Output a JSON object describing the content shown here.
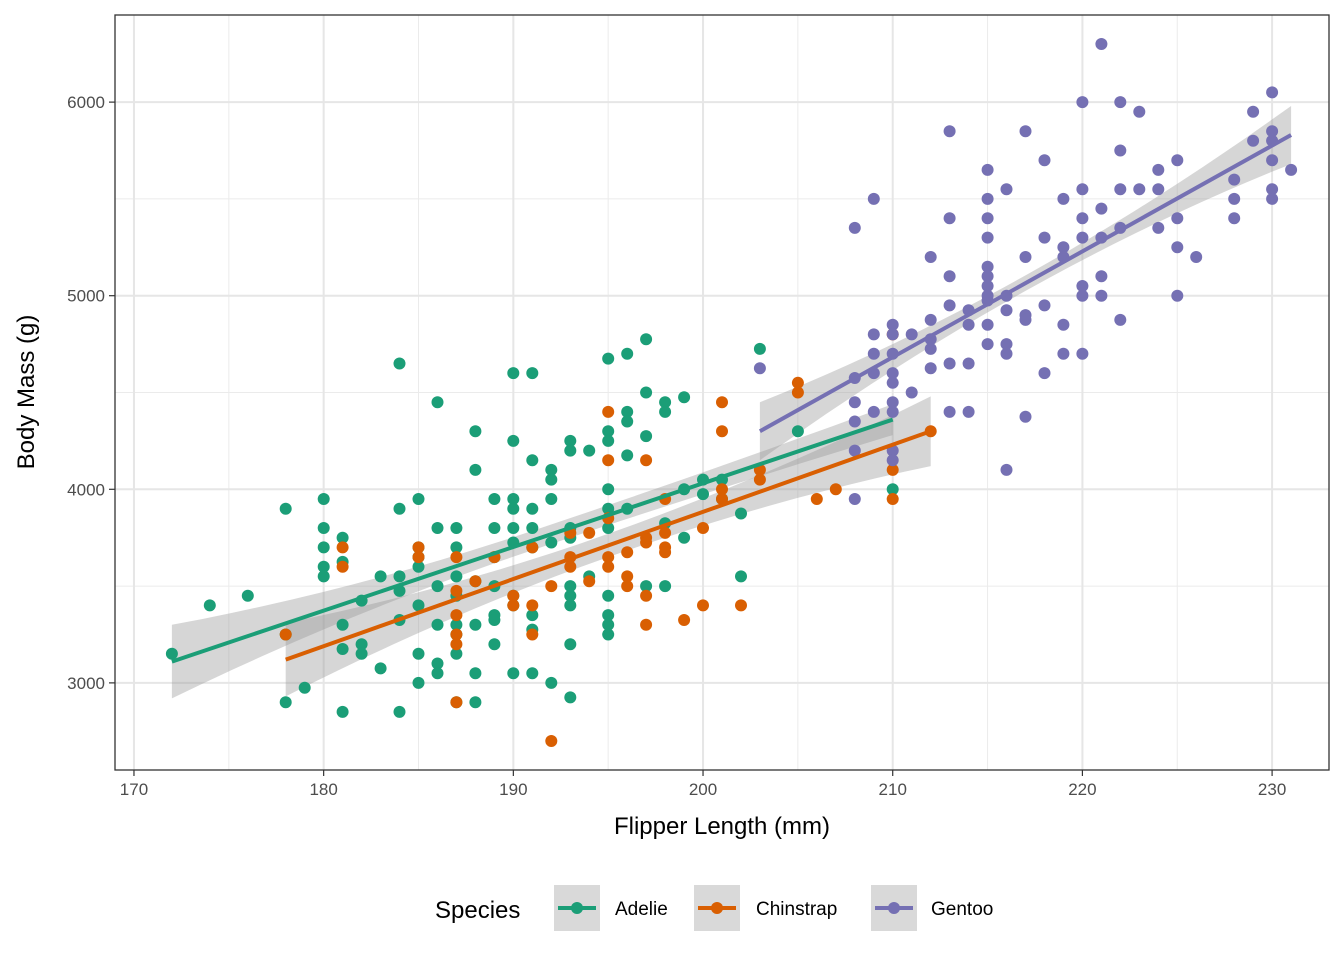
{
  "chart_data": {
    "type": "scatter",
    "xlabel": "Flipper Length (mm)",
    "ylabel": "Body Mass (g)",
    "xlim": [
      169,
      233
    ],
    "ylim": [
      2550,
      6450
    ],
    "x_ticks": [
      170,
      180,
      190,
      200,
      210,
      220,
      230
    ],
    "y_ticks": [
      3000,
      4000,
      5000,
      6000
    ],
    "grid": true,
    "legend": {
      "title": "Species",
      "position": "bottom"
    },
    "series": [
      {
        "name": "Adelie",
        "color": "#1b9e77",
        "fit": {
          "x0": 172,
          "y0": 3110,
          "x1": 210,
          "y1": 4360,
          "band_start": 190,
          "band_mid": 50,
          "band_end": 80
        },
        "points": [
          [
            172,
            3150
          ],
          [
            174,
            3400
          ],
          [
            176,
            3450
          ],
          [
            178,
            3900
          ],
          [
            178,
            2900
          ],
          [
            178,
            3250
          ],
          [
            179,
            2975
          ],
          [
            180,
            3950
          ],
          [
            180,
            3800
          ],
          [
            180,
            3700
          ],
          [
            180,
            3600
          ],
          [
            180,
            3550
          ],
          [
            181,
            3750
          ],
          [
            181,
            3625
          ],
          [
            181,
            3300
          ],
          [
            181,
            3175
          ],
          [
            181,
            2850
          ],
          [
            182,
            3425
          ],
          [
            182,
            3200
          ],
          [
            182,
            3150
          ],
          [
            183,
            3550
          ],
          [
            183,
            3075
          ],
          [
            184,
            4650
          ],
          [
            184,
            3900
          ],
          [
            184,
            3550
          ],
          [
            184,
            3475
          ],
          [
            184,
            3325
          ],
          [
            184,
            2850
          ],
          [
            185,
            3950
          ],
          [
            185,
            3700
          ],
          [
            185,
            3650
          ],
          [
            185,
            3600
          ],
          [
            185,
            3400
          ],
          [
            185,
            3150
          ],
          [
            185,
            3000
          ],
          [
            186,
            4450
          ],
          [
            186,
            3800
          ],
          [
            186,
            3500
          ],
          [
            186,
            3300
          ],
          [
            186,
            3100
          ],
          [
            186,
            3050
          ],
          [
            187,
            3800
          ],
          [
            187,
            3700
          ],
          [
            187,
            3550
          ],
          [
            187,
            3450
          ],
          [
            187,
            3300
          ],
          [
            187,
            3250
          ],
          [
            187,
            3150
          ],
          [
            187,
            2900
          ],
          [
            188,
            4300
          ],
          [
            188,
            4100
          ],
          [
            188,
            3525
          ],
          [
            188,
            3300
          ],
          [
            188,
            3050
          ],
          [
            188,
            2900
          ],
          [
            189,
            3950
          ],
          [
            189,
            3800
          ],
          [
            189,
            3650
          ],
          [
            189,
            3500
          ],
          [
            189,
            3350
          ],
          [
            189,
            3325
          ],
          [
            189,
            3200
          ],
          [
            190,
            4600
          ],
          [
            190,
            4250
          ],
          [
            190,
            3950
          ],
          [
            190,
            3900
          ],
          [
            190,
            3800
          ],
          [
            190,
            3725
          ],
          [
            190,
            3450
          ],
          [
            190,
            3400
          ],
          [
            190,
            3050
          ],
          [
            191,
            4600
          ],
          [
            191,
            4150
          ],
          [
            191,
            3900
          ],
          [
            191,
            3800
          ],
          [
            191,
            3700
          ],
          [
            191,
            3350
          ],
          [
            191,
            3275
          ],
          [
            191,
            3050
          ],
          [
            192,
            4100
          ],
          [
            192,
            4050
          ],
          [
            192,
            3950
          ],
          [
            192,
            3725
          ],
          [
            192,
            3000
          ],
          [
            193,
            4250
          ],
          [
            193,
            4200
          ],
          [
            193,
            3800
          ],
          [
            193,
            3750
          ],
          [
            193,
            3500
          ],
          [
            193,
            3450
          ],
          [
            193,
            3400
          ],
          [
            193,
            3200
          ],
          [
            193,
            2925
          ],
          [
            194,
            4200
          ],
          [
            194,
            3550
          ],
          [
            195,
            4675
          ],
          [
            195,
            4300
          ],
          [
            195,
            4250
          ],
          [
            195,
            4000
          ],
          [
            195,
            3900
          ],
          [
            195,
            3800
          ],
          [
            195,
            3450
          ],
          [
            195,
            3350
          ],
          [
            195,
            3300
          ],
          [
            195,
            3250
          ],
          [
            196,
            4700
          ],
          [
            196,
            4400
          ],
          [
            196,
            4350
          ],
          [
            196,
            4175
          ],
          [
            196,
            3900
          ],
          [
            197,
            4775
          ],
          [
            197,
            4500
          ],
          [
            197,
            4275
          ],
          [
            197,
            3500
          ],
          [
            198,
            4450
          ],
          [
            198,
            4400
          ],
          [
            198,
            3825
          ],
          [
            198,
            3500
          ],
          [
            199,
            4475
          ],
          [
            199,
            4000
          ],
          [
            199,
            3750
          ],
          [
            200,
            4050
          ],
          [
            200,
            3975
          ],
          [
            201,
            4050
          ],
          [
            201,
            3950
          ],
          [
            202,
            3875
          ],
          [
            202,
            3550
          ],
          [
            203,
            4725
          ],
          [
            205,
            4300
          ],
          [
            210,
            4000
          ]
        ]
      },
      {
        "name": "Chinstrap",
        "color": "#d95f02",
        "fit": {
          "x0": 178,
          "y0": 3120,
          "x1": 212,
          "y1": 4300,
          "band_start": 190,
          "band_mid": 60,
          "band_end": 180
        },
        "points": [
          [
            178,
            3250
          ],
          [
            181,
            3700
          ],
          [
            181,
            3600
          ],
          [
            185,
            3700
          ],
          [
            185,
            3650
          ],
          [
            187,
            3650
          ],
          [
            187,
            3475
          ],
          [
            187,
            3350
          ],
          [
            187,
            3250
          ],
          [
            187,
            3200
          ],
          [
            187,
            2900
          ],
          [
            188,
            3525
          ],
          [
            189,
            3650
          ],
          [
            190,
            3450
          ],
          [
            190,
            3400
          ],
          [
            191,
            3700
          ],
          [
            191,
            3400
          ],
          [
            191,
            3250
          ],
          [
            192,
            3500
          ],
          [
            192,
            2700
          ],
          [
            193,
            3775
          ],
          [
            193,
            3650
          ],
          [
            193,
            3600
          ],
          [
            194,
            3775
          ],
          [
            194,
            3525
          ],
          [
            195,
            4400
          ],
          [
            195,
            4150
          ],
          [
            195,
            3850
          ],
          [
            195,
            3650
          ],
          [
            195,
            3600
          ],
          [
            196,
            3675
          ],
          [
            196,
            3550
          ],
          [
            196,
            3500
          ],
          [
            197,
            4150
          ],
          [
            197,
            3750
          ],
          [
            197,
            3725
          ],
          [
            197,
            3450
          ],
          [
            197,
            3300
          ],
          [
            198,
            3950
          ],
          [
            198,
            3775
          ],
          [
            198,
            3700
          ],
          [
            198,
            3675
          ],
          [
            199,
            3325
          ],
          [
            200,
            3800
          ],
          [
            200,
            3400
          ],
          [
            201,
            4450
          ],
          [
            201,
            4300
          ],
          [
            201,
            4000
          ],
          [
            201,
            3950
          ],
          [
            202,
            3400
          ],
          [
            203,
            4100
          ],
          [
            203,
            4050
          ],
          [
            205,
            4550
          ],
          [
            205,
            4500
          ],
          [
            206,
            3950
          ],
          [
            207,
            4000
          ],
          [
            210,
            4800
          ],
          [
            210,
            4100
          ],
          [
            210,
            3950
          ],
          [
            212,
            4300
          ]
        ]
      },
      {
        "name": "Gentoo",
        "color": "#7570b3",
        "fit": {
          "x0": 203,
          "y0": 4300,
          "x1": 231,
          "y1": 5830,
          "band_start": 150,
          "band_mid": 40,
          "band_end": 150
        },
        "points": [
          [
            203,
            4625
          ],
          [
            208,
            5350
          ],
          [
            208,
            4575
          ],
          [
            208,
            4450
          ],
          [
            208,
            4350
          ],
          [
            208,
            4200
          ],
          [
            208,
            3950
          ],
          [
            209,
            5500
          ],
          [
            209,
            4800
          ],
          [
            209,
            4700
          ],
          [
            209,
            4600
          ],
          [
            209,
            4400
          ],
          [
            210,
            4850
          ],
          [
            210,
            4800
          ],
          [
            210,
            4700
          ],
          [
            210,
            4600
          ],
          [
            210,
            4550
          ],
          [
            210,
            4450
          ],
          [
            210,
            4400
          ],
          [
            210,
            4200
          ],
          [
            210,
            4150
          ],
          [
            211,
            4800
          ],
          [
            211,
            4500
          ],
          [
            212,
            5200
          ],
          [
            212,
            4875
          ],
          [
            212,
            4775
          ],
          [
            212,
            4725
          ],
          [
            212,
            4625
          ],
          [
            213,
            5850
          ],
          [
            213,
            5400
          ],
          [
            213,
            5100
          ],
          [
            213,
            4950
          ],
          [
            213,
            4650
          ],
          [
            213,
            4400
          ],
          [
            214,
            4925
          ],
          [
            214,
            4850
          ],
          [
            214,
            4650
          ],
          [
            214,
            4400
          ],
          [
            215,
            5650
          ],
          [
            215,
            5500
          ],
          [
            215,
            5400
          ],
          [
            215,
            5300
          ],
          [
            215,
            5150
          ],
          [
            215,
            5100
          ],
          [
            215,
            5050
          ],
          [
            215,
            5000
          ],
          [
            215,
            4975
          ],
          [
            215,
            4850
          ],
          [
            215,
            4750
          ],
          [
            216,
            5550
          ],
          [
            216,
            5000
          ],
          [
            216,
            4925
          ],
          [
            216,
            4750
          ],
          [
            216,
            4700
          ],
          [
            216,
            4100
          ],
          [
            217,
            5850
          ],
          [
            217,
            5200
          ],
          [
            217,
            4900
          ],
          [
            217,
            4875
          ],
          [
            217,
            4375
          ],
          [
            218,
            5700
          ],
          [
            218,
            5300
          ],
          [
            218,
            4950
          ],
          [
            218,
            4600
          ],
          [
            219,
            5500
          ],
          [
            219,
            5250
          ],
          [
            219,
            5200
          ],
          [
            219,
            4850
          ],
          [
            219,
            4700
          ],
          [
            220,
            6000
          ],
          [
            220,
            5550
          ],
          [
            220,
            5400
          ],
          [
            220,
            5300
          ],
          [
            220,
            5050
          ],
          [
            220,
            5000
          ],
          [
            220,
            4700
          ],
          [
            221,
            6300
          ],
          [
            221,
            5450
          ],
          [
            221,
            5300
          ],
          [
            221,
            5100
          ],
          [
            221,
            5000
          ],
          [
            222,
            6000
          ],
          [
            222,
            5750
          ],
          [
            222,
            5550
          ],
          [
            222,
            5350
          ],
          [
            222,
            4875
          ],
          [
            223,
            5950
          ],
          [
            223,
            5550
          ],
          [
            224,
            5650
          ],
          [
            224,
            5550
          ],
          [
            224,
            5350
          ],
          [
            225,
            5700
          ],
          [
            225,
            5400
          ],
          [
            225,
            5250
          ],
          [
            225,
            5000
          ],
          [
            226,
            5200
          ],
          [
            228,
            5600
          ],
          [
            228,
            5500
          ],
          [
            228,
            5400
          ],
          [
            229,
            5950
          ],
          [
            229,
            5800
          ],
          [
            230,
            6050
          ],
          [
            230,
            5850
          ],
          [
            230,
            5800
          ],
          [
            230,
            5700
          ],
          [
            230,
            5550
          ],
          [
            230,
            5500
          ],
          [
            231,
            5650
          ]
        ]
      }
    ]
  }
}
